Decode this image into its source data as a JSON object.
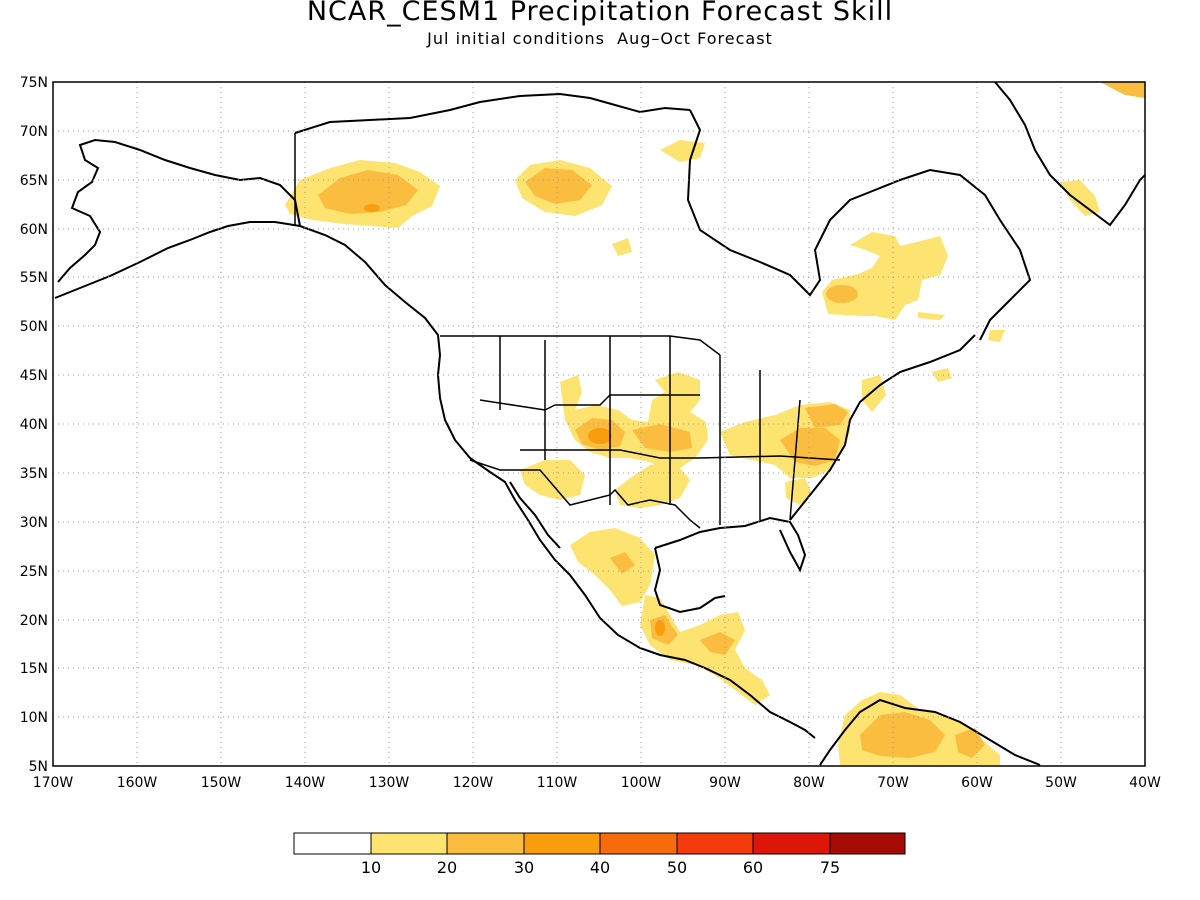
{
  "title": "NCAR_CESM1 Precipitation Forecast Skill",
  "subtitle": "Jul initial conditions  Aug–Oct Forecast",
  "map": {
    "lon_range": [
      -170,
      -40
    ],
    "lat_range": [
      5,
      75
    ],
    "grid": "dotted",
    "lat_labels": [
      "75N",
      "70N",
      "65N",
      "60N",
      "55N",
      "50N",
      "45N",
      "40N",
      "35N",
      "30N",
      "25N",
      "20N",
      "15N",
      "10N",
      "5N"
    ],
    "lon_labels": [
      "170W",
      "160W",
      "150W",
      "140W",
      "130W",
      "120W",
      "110W",
      "100W",
      "90W",
      "80W",
      "70W",
      "60W",
      "50W",
      "40W"
    ]
  },
  "legend": {
    "labels": [
      "10",
      "20",
      "30",
      "40",
      "50",
      "60",
      "75"
    ],
    "colors": [
      "#ffffff",
      "#fde370",
      "#fbbd3f",
      "#f99d0c",
      "#f76b0b",
      "#f53b0c",
      "#dc1608",
      "#a50a04"
    ]
  }
}
